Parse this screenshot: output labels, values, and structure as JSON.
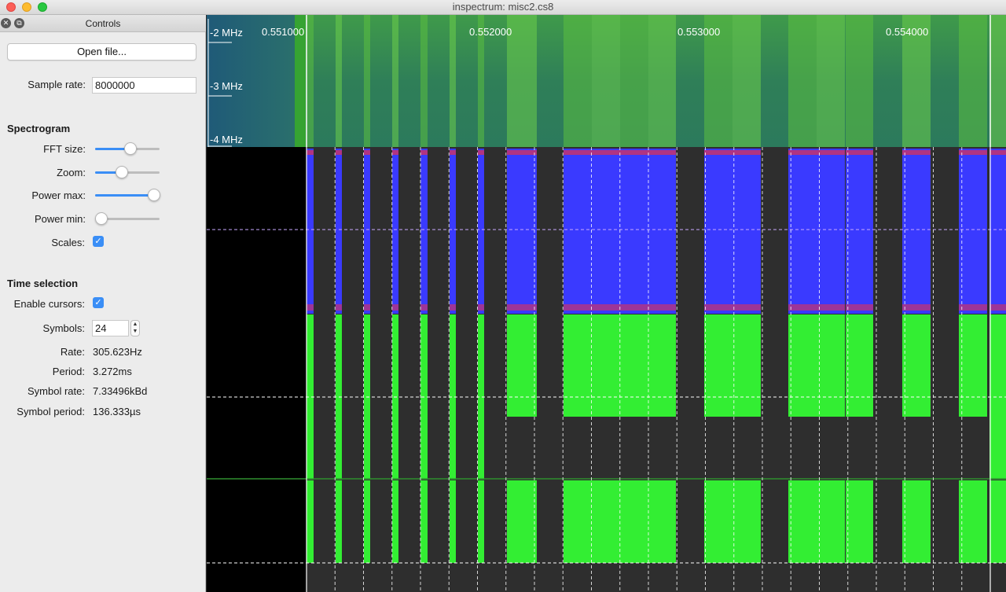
{
  "window": {
    "title": "inspectrum: misc2.cs8"
  },
  "dock": {
    "title": "Controls",
    "close_icon": "close-icon",
    "float_icon": "float-icon"
  },
  "controls": {
    "open_file_label": "Open file...",
    "sample_rate_label": "Sample rate:",
    "sample_rate_value": "8000000",
    "spectrogram_heading": "Spectrogram",
    "fft_size_label": "FFT size:",
    "fft_size_level": 0.55,
    "zoom_label": "Zoom:",
    "zoom_level": 0.42,
    "power_max_label": "Power max:",
    "power_max_level": 0.98,
    "power_min_label": "Power min:",
    "power_min_level": 0.0,
    "scales_label": "Scales:",
    "scales_checked": true,
    "time_selection_heading": "Time selection",
    "enable_cursors_label": "Enable cursors:",
    "enable_cursors_checked": true,
    "symbols_label": "Symbols:",
    "symbols_value": "24",
    "rate_label": "Rate:",
    "rate_value": "305.623Hz",
    "period_label": "Period:",
    "period_value": "3.272ms",
    "symbol_rate_label": "Symbol rate:",
    "symbol_rate_value": "7.33496kBd",
    "symbol_period_label": "Symbol period:",
    "symbol_period_value": "136.333µs"
  },
  "spectrogram": {
    "freq_labels": [
      "-2 MHz",
      "-3 MHz",
      "-4 MHz"
    ],
    "time_labels": [
      "0.551000",
      "0.552000",
      "0.553000",
      "0.554000"
    ]
  },
  "colors": {
    "accent": "#3a8ef6",
    "trace_blue": "#3a3aff",
    "trace_red": "#ff3030",
    "trace_green": "#33ee33",
    "plot_bg": "#2e2e2e"
  }
}
